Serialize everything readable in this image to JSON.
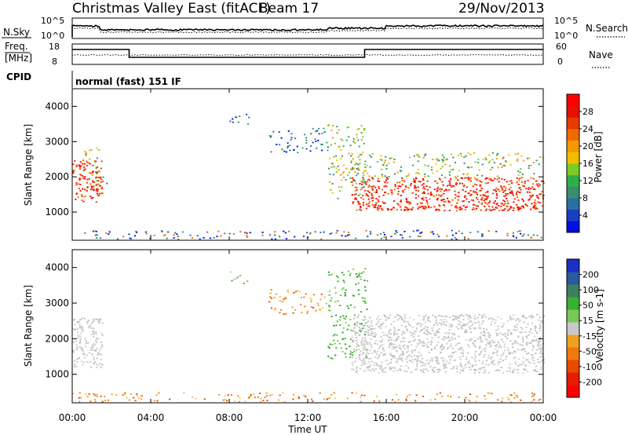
{
  "header": {
    "station": "Christmas Valley East (fitACF)",
    "beam": "Beam 17",
    "date": "29/Nov/2013"
  },
  "top_panel": {
    "left_label": "N.Sky",
    "right_label": "N.Search",
    "left_ticks": [
      "10^5",
      "10^0"
    ],
    "right_ticks": [
      "10^5",
      "10^0"
    ]
  },
  "freq_panel": {
    "left_label_1": "Freq.",
    "left_label_2": "[MHz]",
    "right_label": "Nave",
    "left_ticks": [
      "18",
      "8"
    ],
    "right_ticks": [
      "60",
      "0"
    ]
  },
  "cpid": {
    "label": "CPID",
    "mode": "normal (fast) 151 IF"
  },
  "x_axis": {
    "title": "Time UT",
    "ticks": [
      "00:00",
      "04:00",
      "08:00",
      "12:00",
      "16:00",
      "20:00",
      "00:00"
    ]
  },
  "chart_data": [
    {
      "type": "heatmap",
      "quantity": "power",
      "ylabel": "Slant Range [km]",
      "yticks": [
        1000,
        2000,
        3000,
        4000
      ],
      "ylim": [
        200,
        4500
      ],
      "xlim": [
        0,
        24
      ],
      "colorbar": {
        "label": "Power [dB]",
        "ticks": [
          4,
          8,
          12,
          16,
          20,
          24,
          28
        ],
        "colors": [
          "#0010e0",
          "#1a3ec0",
          "#2870a0",
          "#3a8e70",
          "#2faf4a",
          "#7ccc26",
          "#f0c000",
          "#f59a00",
          "#f06a00",
          "#e83a00",
          "#e81000",
          "#ff0000"
        ]
      },
      "regions": [
        {
          "x": [
            0.0,
            1.5
          ],
          "y": [
            1300,
            2500
          ],
          "level": "high"
        },
        {
          "x": [
            0.6,
            1.4
          ],
          "y": [
            2000,
            2850
          ],
          "level": "mid"
        },
        {
          "x": [
            1.2,
            1.9
          ],
          "y": [
            1800,
            2050
          ],
          "level": "low"
        },
        {
          "x": [
            8.0,
            9.0
          ],
          "y": [
            3500,
            3900
          ],
          "level": "low"
        },
        {
          "x": [
            10.0,
            13.0
          ],
          "y": [
            2700,
            3400
          ],
          "level": "low"
        },
        {
          "x": [
            13.0,
            15.0
          ],
          "y": [
            1400,
            3500
          ],
          "level": "mid"
        },
        {
          "x": [
            14.2,
            24.0
          ],
          "y": [
            1050,
            2000
          ],
          "level": "high"
        },
        {
          "x": [
            14.2,
            24.0
          ],
          "y": [
            2000,
            2700
          ],
          "level": "mid"
        },
        {
          "x": [
            0.0,
            24.0
          ],
          "y": [
            250,
            500
          ],
          "level": "ground"
        }
      ]
    },
    {
      "type": "heatmap",
      "quantity": "velocity",
      "ylabel": "Slant Range [km]",
      "yticks": [
        1000,
        2000,
        3000,
        4000
      ],
      "ylim": [
        200,
        4500
      ],
      "xlim": [
        0,
        24
      ],
      "colorbar": {
        "label": "Velocity [m s-1]",
        "ticks": [
          200,
          100,
          50,
          15,
          -15,
          -50,
          -100,
          -200
        ],
        "colors": [
          "#1a30c0",
          "#2a5aa0",
          "#3c8060",
          "#38b030",
          "#78c858",
          "#c8c8c8",
          "#f0a020",
          "#f07810",
          "#e84a00",
          "#e81c00",
          "#ff0000"
        ]
      },
      "regions": [
        {
          "x": [
            0.0,
            1.5
          ],
          "y": [
            1200,
            2600
          ],
          "level": "ground-scatter"
        },
        {
          "x": [
            8.0,
            9.0
          ],
          "y": [
            3500,
            3900
          ],
          "level": "low-velocity"
        },
        {
          "x": [
            10.0,
            13.0
          ],
          "y": [
            2700,
            3400
          ],
          "level": "negative"
        },
        {
          "x": [
            13.0,
            15.0
          ],
          "y": [
            1400,
            4000
          ],
          "level": "positive"
        },
        {
          "x": [
            14.2,
            24.0
          ],
          "y": [
            1050,
            2700
          ],
          "level": "ground-scatter"
        },
        {
          "x": [
            0.0,
            24.0
          ],
          "y": [
            250,
            500
          ],
          "level": "negative"
        }
      ]
    }
  ]
}
